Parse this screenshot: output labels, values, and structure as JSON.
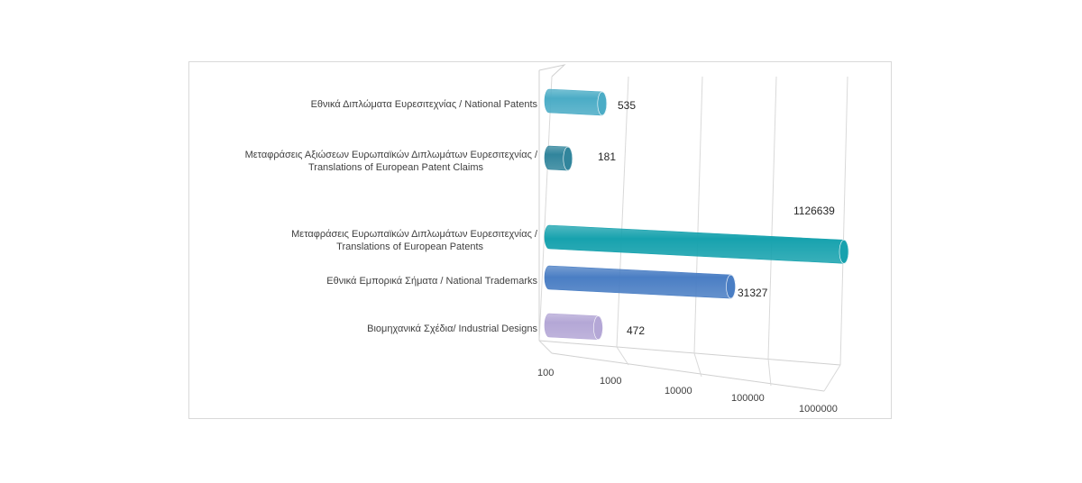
{
  "chart_data": {
    "type": "bar",
    "orientation": "horizontal",
    "style": "3d-cylinder",
    "x_scale": "log",
    "xlim": [
      100,
      1000000
    ],
    "x_ticks": [
      "100",
      "1000",
      "10000",
      "100000",
      "1000000"
    ],
    "grid": true,
    "legend": "none",
    "categories": [
      "Εθνικά Διπλώματα Ευρεσιτεχνίας / National Patents",
      "Μεταφράσεις Αξιώσεων Ευρωπαϊκών Διπλωμάτων Ευρεσιτεχνίας / Translations of European Patent Claims",
      "Μεταφράσεις Ευρωπαϊκών Διπλωμάτων Ευρεσιτεχνίας / Translations of European Patents",
      "Εθνικά Εμπορικά Σήματα / National Trademarks",
      "Βιομηχανικά Σχέδια/ Industrial Designs"
    ],
    "category_lines": [
      [
        "Εθνικά Διπλώματα Ευρεσιτεχνίας / National Patents"
      ],
      [
        "Μεταφράσεις Αξιώσεων Ευρωπαϊκών Διπλωμάτων Ευρεσιτεχνίας /",
        "Translations of European Patent Claims"
      ],
      [
        "Μεταφράσεις Ευρωπαϊκών Διπλωμάτων Ευρεσιτεχνίας /",
        "Translations of European Patents"
      ],
      [
        "Εθνικά Εμπορικά Σήματα / National Trademarks"
      ],
      [
        "Βιομηχανικά Σχέδια/ Industrial Designs"
      ]
    ],
    "values": [
      535,
      181,
      1126639,
      31327,
      472
    ],
    "value_labels": [
      "535",
      "181",
      "1126639",
      "31327",
      "472"
    ],
    "colors": [
      "#4bacc6",
      "#31859c",
      "#17a2ae",
      "#4a7ec4",
      "#b4a7d6"
    ],
    "title": "",
    "xlabel": "",
    "ylabel": ""
  }
}
